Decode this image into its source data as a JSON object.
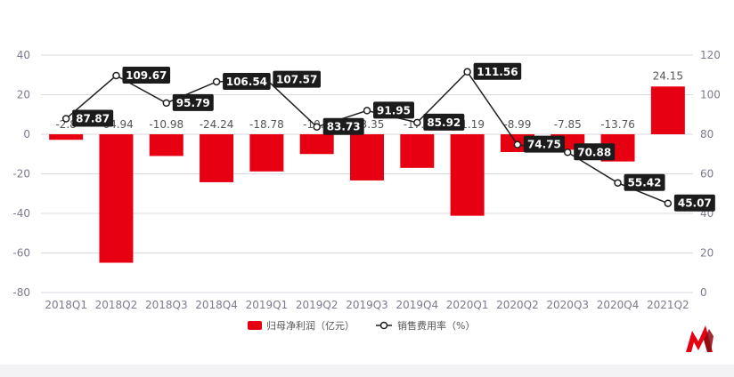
{
  "chart_data": {
    "type": "bar",
    "categories": [
      "2018Q1",
      "2018Q2",
      "2018Q3",
      "2018Q4",
      "2019Q1",
      "2019Q2",
      "2019Q3",
      "2019Q4",
      "2020Q1",
      "2020Q2",
      "2020Q3",
      "2020Q4",
      "2021Q2"
    ],
    "series": [
      {
        "name": "归母净利润（亿元）",
        "type": "bar",
        "axis": "left",
        "color": "#e60012",
        "values": [
          -2.8,
          -64.94,
          -10.98,
          -24.24,
          -18.78,
          -10.0,
          -23.35,
          -17.0,
          -41.19,
          -8.99,
          -7.85,
          -13.76,
          24.15
        ],
        "labels": [
          "-2.8",
          "-64.94",
          "-10.98",
          "-24.24",
          "-18.78",
          "-10.0",
          "-23.35",
          "-17.0",
          "-41.19",
          "-8.99",
          "-7.85",
          "-13.76",
          "24.15"
        ]
      },
      {
        "name": "销售费用率（%）",
        "type": "line",
        "axis": "right",
        "color": "#1f1f1f",
        "values": [
          87.87,
          109.67,
          95.79,
          106.54,
          107.57,
          83.73,
          91.95,
          85.92,
          111.56,
          74.75,
          70.88,
          55.42,
          45.07
        ],
        "labels": [
          "87.87",
          "109.67",
          "95.79",
          "106.54",
          "107.57",
          "83.73",
          "91.95",
          "85.92",
          "111.56",
          "74.75",
          "70.88",
          "55.42",
          "45.07"
        ]
      }
    ],
    "left_axis": {
      "min": -80,
      "max": 40,
      "ticks": [
        40,
        20,
        0,
        -20,
        -40,
        -60,
        -80
      ]
    },
    "right_axis": {
      "min": 0,
      "max": 120,
      "ticks": [
        120,
        100,
        80,
        60,
        40,
        20,
        0
      ]
    },
    "grid": true,
    "legend_position": "bottom"
  }
}
